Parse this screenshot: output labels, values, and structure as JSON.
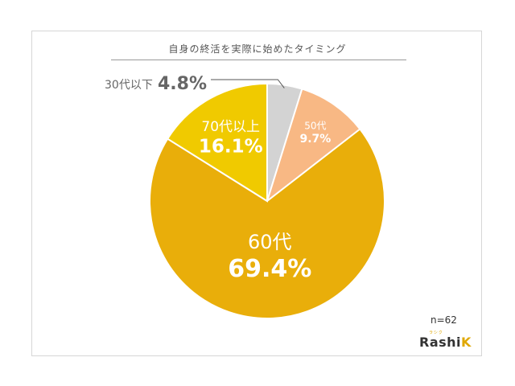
{
  "chart_data": {
    "type": "pie",
    "title": "自身の終活を実際に始めたタイミング",
    "categories": [
      "30代以下",
      "50代",
      "60代",
      "70代以上"
    ],
    "values": [
      4.8,
      9.7,
      69.4,
      16.1
    ],
    "value_labels": [
      "4.8%",
      "9.7%",
      "69.4%",
      "16.1%"
    ],
    "colors": [
      "#d3d3d3",
      "#f8b884",
      "#e9ae0a",
      "#f0ca00"
    ],
    "start_angle_deg": 0,
    "direction": "clockwise",
    "note": "n=62"
  },
  "logo": {
    "text": "RashiK",
    "kana": "ラシク"
  }
}
